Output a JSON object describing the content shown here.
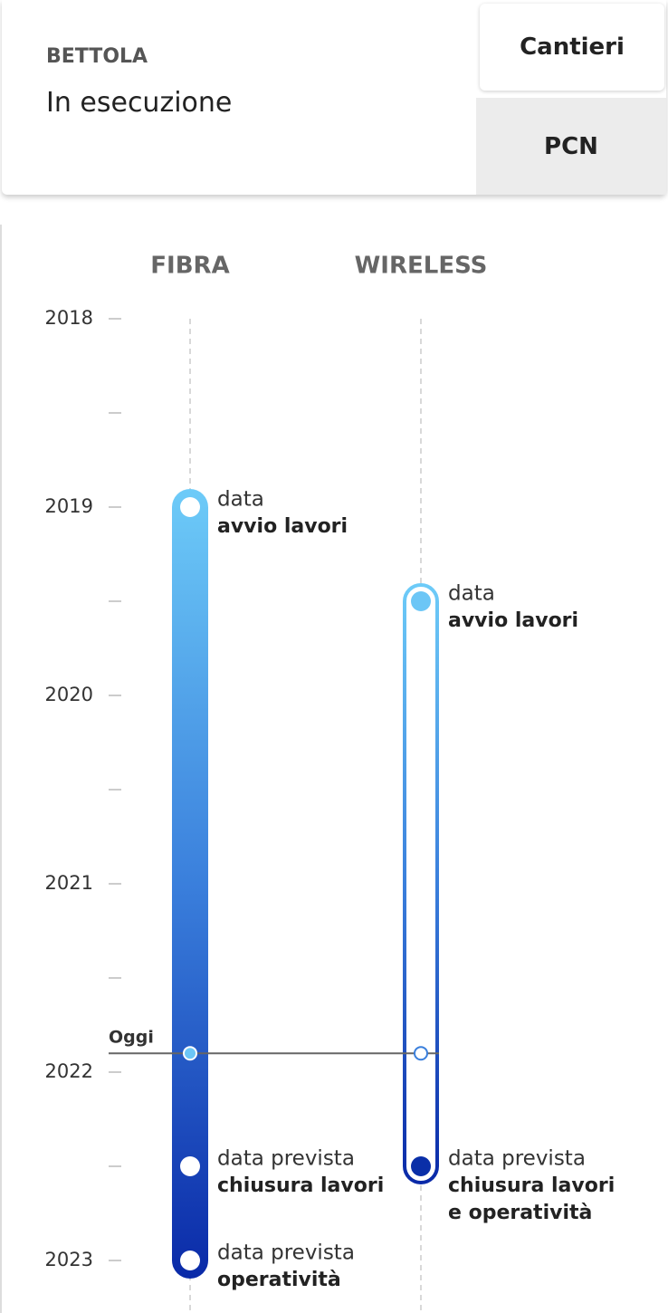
{
  "header": {
    "location": "BETTOLA",
    "status": "In esecuzione"
  },
  "tabs": [
    "Cantieri",
    "PCN"
  ],
  "timeline": {
    "yticks": [
      2018,
      2019,
      2020,
      2021,
      2022,
      2023
    ],
    "minor_ticks": [
      2018.5,
      2019.5,
      2020.5,
      2021.5,
      2022.5
    ],
    "ylim": [
      2018,
      2023
    ],
    "today": {
      "label": "Oggi",
      "value": 2021.9
    },
    "columns": [
      {
        "name": "FIBRA",
        "style": "filled",
        "events": [
          {
            "date": 2019,
            "label": "data",
            "bold": [
              "avvio lavori"
            ],
            "color": "#ffffff"
          },
          {
            "date": 2022.5,
            "label": "data prevista",
            "bold": [
              "chiusura lavori"
            ],
            "color": "#ffffff"
          },
          {
            "date": 2023,
            "label": "data prevista",
            "bold": [
              "operatività"
            ],
            "color": "#ffffff"
          }
        ]
      },
      {
        "name": "WIRELESS",
        "style": "outline",
        "events": [
          {
            "date": 2019.5,
            "label": "data",
            "bold": [
              "avvio lavori"
            ],
            "color": "#6cc6f6"
          },
          {
            "date": 2022.5,
            "label": "data prevista",
            "bold": [
              "chiusura lavori",
              "e operatività"
            ],
            "color": "#0a2fa8"
          }
        ]
      }
    ]
  }
}
